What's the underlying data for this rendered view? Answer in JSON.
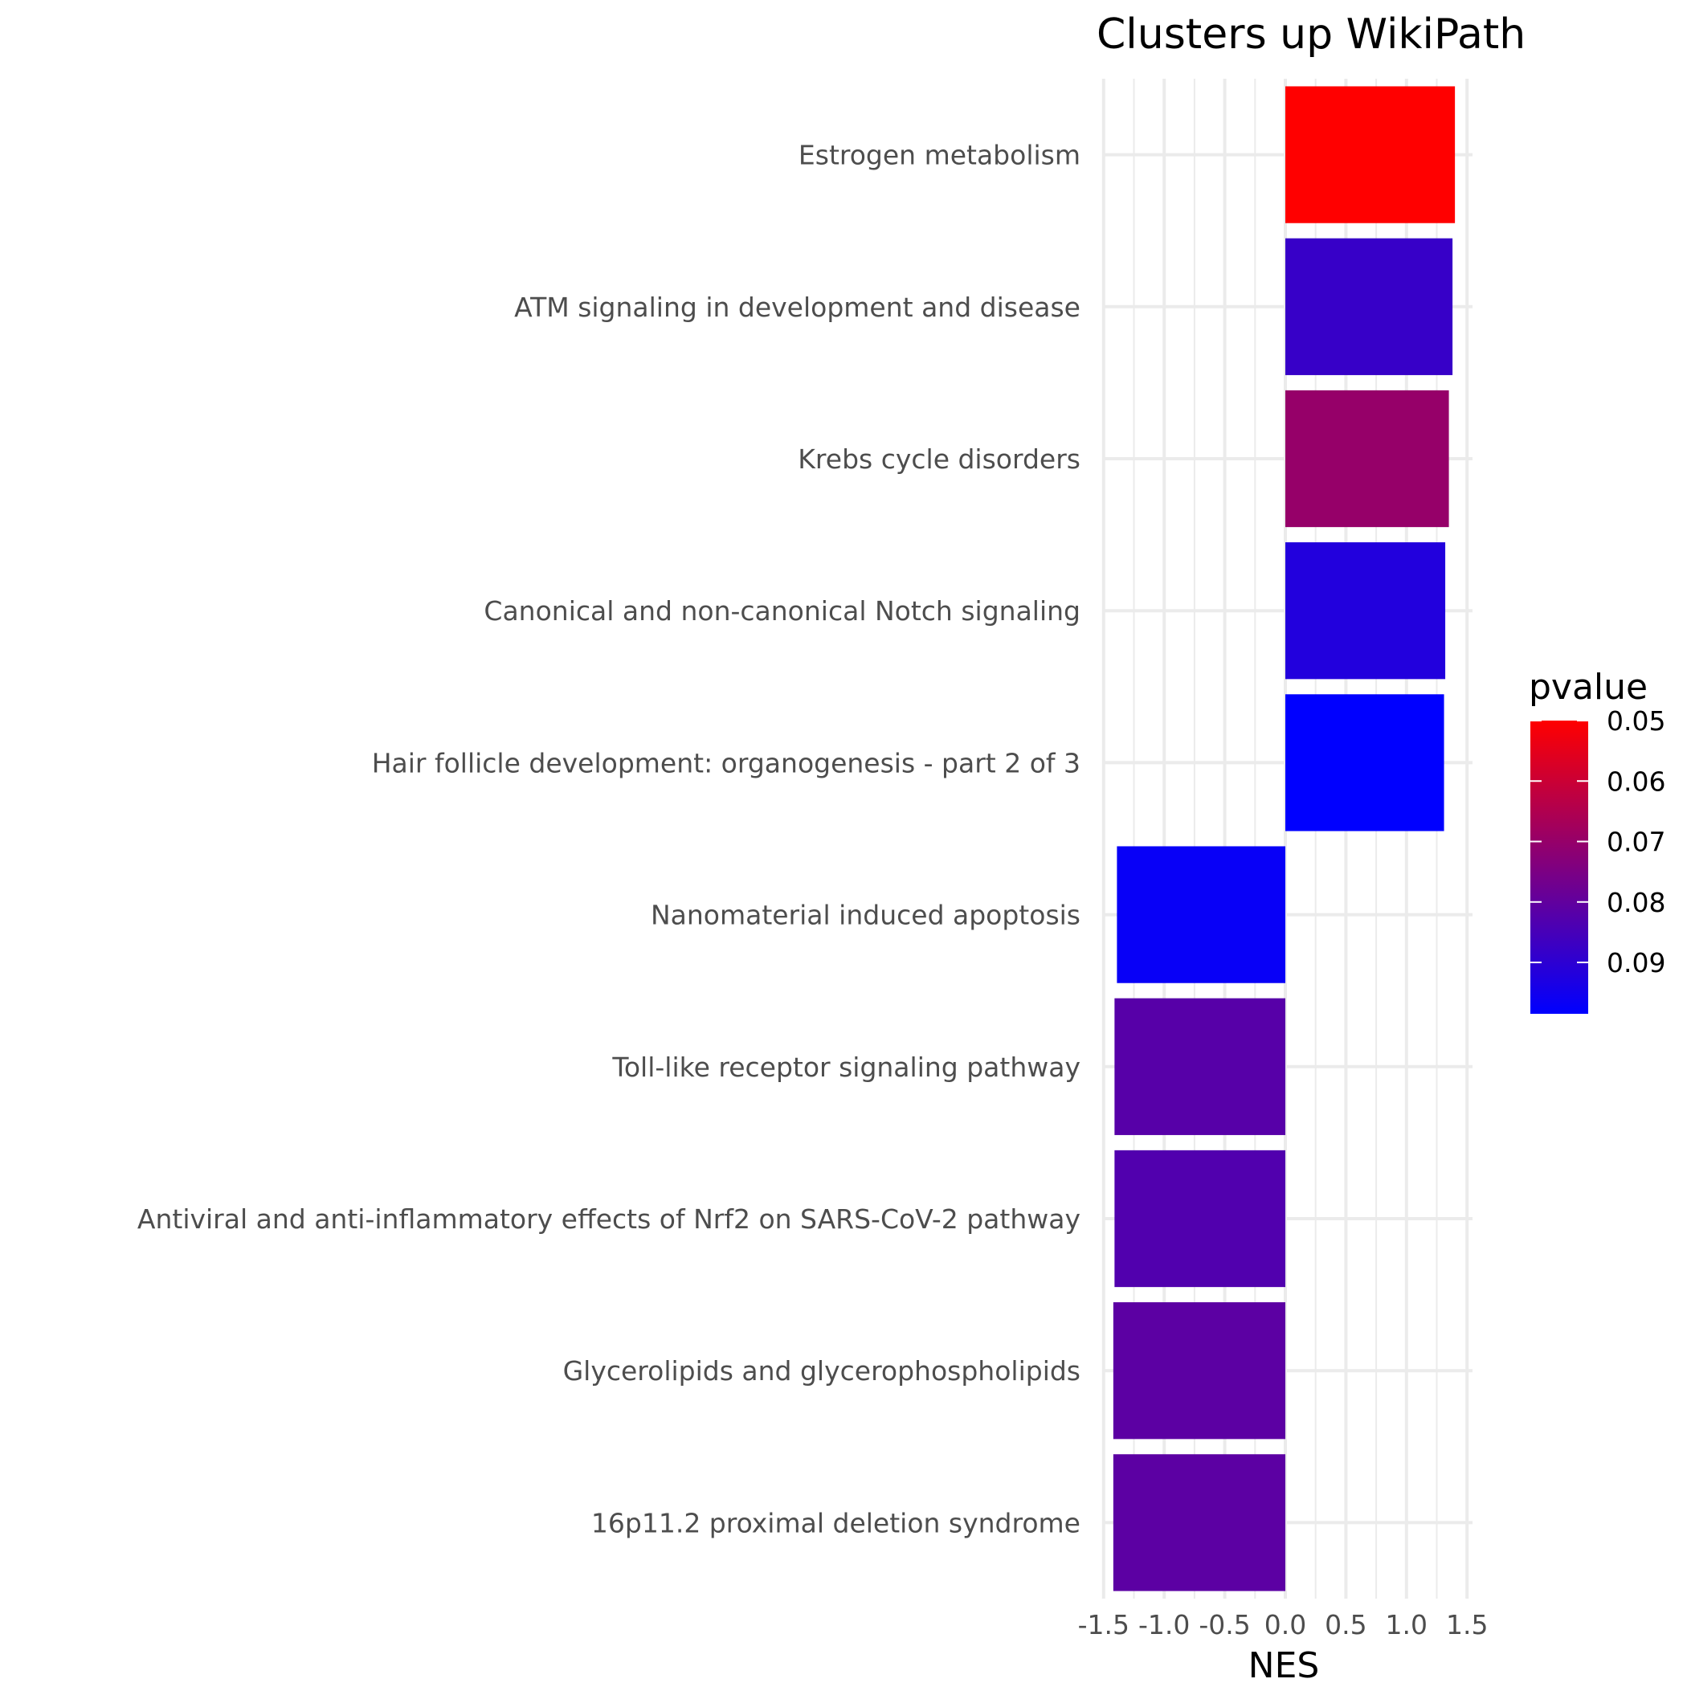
{
  "chart_data": {
    "type": "bar",
    "orientation": "horizontal",
    "title": "Clusters up WikiPath",
    "xlabel": "NES",
    "ylabel": "",
    "xlim": [
      -1.5,
      1.5
    ],
    "x_ticks": [
      "-1.5",
      "-1.0",
      "-0.5",
      "0.0",
      "0.5",
      "1.0",
      "1.5"
    ],
    "x_tick_values": [
      -1.5,
      -1.0,
      -0.5,
      0.0,
      0.5,
      1.0,
      1.5
    ],
    "grid": true,
    "categories": [
      "Estrogen metabolism",
      "ATM signaling in development and disease ",
      "Krebs cycle disorders",
      "Canonical and non-canonical Notch signaling",
      "Hair follicle development: organogenesis - part 2 of 3",
      "Nanomaterial induced apoptosis",
      "Toll-like receptor signaling pathway",
      "Antiviral and anti-inflammatory effects of Nrf2 on SARS-CoV-2 pathway",
      "Glycerolipids and glycerophospholipids",
      "16p11.2 proximal deletion syndrome"
    ],
    "values": [
      1.4,
      1.38,
      1.35,
      1.32,
      1.31,
      -1.39,
      -1.41,
      -1.41,
      -1.42,
      -1.42
    ],
    "pvalues": [
      0.05,
      0.088,
      0.07,
      0.092,
      0.1,
      0.097,
      0.082,
      0.083,
      0.081,
      0.081
    ],
    "legend": {
      "title": "pvalue",
      "labels": [
        "0.05",
        "0.06",
        "0.07",
        "0.08",
        "0.09"
      ],
      "label_values": [
        0.05,
        0.06,
        0.07,
        0.08,
        0.09
      ],
      "range": [
        0.05,
        0.0985
      ],
      "color_low": "#ff0000",
      "color_high": "#0000ff",
      "placement": "right"
    },
    "colors": {
      "grid": "#ebebeb",
      "axis_text": "#4d4d4d",
      "title": "#000000"
    }
  }
}
